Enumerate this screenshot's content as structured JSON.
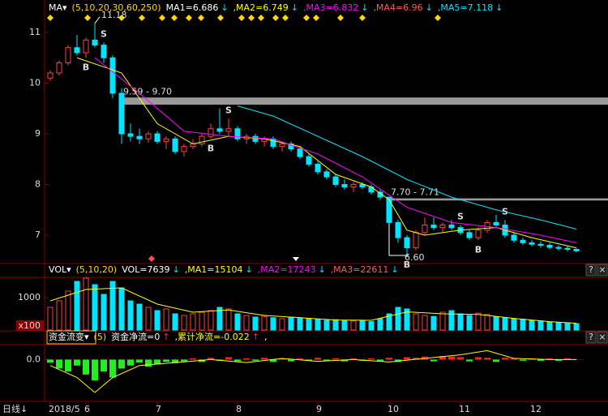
{
  "chart_data": [
    {
      "type": "candlestick",
      "title": "MA▾",
      "params": "(5,10,20,30,60,250)",
      "legend": [
        {
          "label": "MA1=6.686",
          "color": "#ffffff",
          "arrow": "↓",
          "arrow_color": "#00e5ff"
        },
        {
          "label": ",MA2=6.749",
          "color": "#ffff00",
          "arrow": "↓",
          "arrow_color": "#00e5ff"
        },
        {
          "label": ",MA3=6.832",
          "color": "#ff00ff",
          "arrow": "↓",
          "arrow_color": "#00e5ff"
        },
        {
          "label": ",MA4=6.96",
          "color": "#ff5a5a",
          "arrow": "↓",
          "arrow_color": "#00e5ff"
        },
        {
          "label": ",MA5=7.118",
          "color": "#00e5ff",
          "arrow": "↓",
          "arrow_color": "#00e5ff"
        }
      ],
      "ylim": [
        6.488,
        11.288
      ],
      "yticks": [
        7,
        8,
        9,
        10,
        11
      ],
      "candles": [
        [
          10.1,
          10.25,
          10.05,
          10.2
        ],
        [
          10.2,
          10.45,
          10.15,
          10.4
        ],
        [
          10.4,
          10.75,
          10.35,
          10.7
        ],
        [
          10.7,
          10.95,
          10.55,
          10.6
        ],
        [
          10.6,
          10.9,
          10.5,
          10.85
        ],
        [
          10.85,
          11.18,
          10.7,
          10.75
        ],
        [
          10.75,
          10.8,
          10.4,
          10.5
        ],
        [
          10.5,
          10.55,
          9.7,
          9.8
        ],
        [
          9.8,
          9.9,
          8.8,
          9.0
        ],
        [
          9.0,
          9.2,
          8.85,
          8.95
        ],
        [
          8.95,
          9.1,
          8.8,
          8.9
        ],
        [
          8.9,
          9.05,
          8.82,
          9.0
        ],
        [
          9.0,
          9.05,
          8.8,
          8.85
        ],
        [
          8.85,
          8.95,
          8.7,
          8.9
        ],
        [
          8.9,
          8.95,
          8.6,
          8.65
        ],
        [
          8.65,
          8.8,
          8.55,
          8.75
        ],
        [
          8.75,
          8.9,
          8.7,
          8.8
        ],
        [
          8.8,
          9.0,
          8.75,
          8.95
        ],
        [
          8.95,
          9.2,
          8.9,
          9.1
        ],
        [
          9.1,
          9.5,
          9.0,
          9.05
        ],
        [
          9.05,
          9.3,
          8.95,
          9.1
        ],
        [
          9.1,
          9.15,
          8.85,
          8.9
        ],
        [
          8.9,
          9.0,
          8.8,
          8.95
        ],
        [
          8.95,
          9.0,
          8.8,
          8.85
        ],
        [
          8.85,
          8.95,
          8.75,
          8.9
        ],
        [
          8.9,
          8.95,
          8.7,
          8.75
        ],
        [
          8.75,
          8.85,
          8.65,
          8.8
        ],
        [
          8.8,
          8.85,
          8.65,
          8.7
        ],
        [
          8.7,
          8.75,
          8.5,
          8.55
        ],
        [
          8.55,
          8.6,
          8.35,
          8.4
        ],
        [
          8.4,
          8.45,
          8.2,
          8.25
        ],
        [
          8.25,
          8.3,
          8.1,
          8.15
        ],
        [
          8.15,
          8.2,
          7.95,
          8.0
        ],
        [
          8.0,
          8.1,
          7.9,
          7.95
        ],
        [
          7.95,
          8.05,
          7.85,
          8.0
        ],
        [
          8.0,
          8.05,
          7.9,
          7.95
        ],
        [
          7.95,
          8.0,
          7.8,
          7.85
        ],
        [
          7.85,
          7.9,
          7.7,
          7.75
        ],
        [
          7.75,
          7.75,
          7.2,
          7.25
        ],
        [
          7.25,
          7.3,
          6.85,
          6.95
        ],
        [
          6.95,
          7.0,
          6.6,
          6.75
        ],
        [
          6.75,
          7.1,
          6.7,
          7.05
        ],
        [
          7.05,
          7.35,
          7.0,
          7.2
        ],
        [
          7.2,
          7.35,
          7.1,
          7.15
        ],
        [
          7.15,
          7.25,
          7.05,
          7.2
        ],
        [
          7.2,
          7.3,
          7.1,
          7.15
        ],
        [
          7.15,
          7.2,
          7.0,
          7.05
        ],
        [
          7.05,
          7.1,
          6.9,
          6.95
        ],
        [
          6.95,
          7.15,
          6.9,
          7.1
        ],
        [
          7.1,
          7.3,
          7.05,
          7.25
        ],
        [
          7.25,
          7.4,
          7.15,
          7.2
        ],
        [
          7.2,
          7.3,
          6.95,
          7.0
        ],
        [
          7.0,
          7.05,
          6.85,
          6.9
        ],
        [
          6.9,
          6.95,
          6.8,
          6.85
        ],
        [
          6.85,
          6.9,
          6.78,
          6.82
        ],
        [
          6.82,
          6.88,
          6.75,
          6.8
        ],
        [
          6.8,
          6.85,
          6.72,
          6.76
        ],
        [
          6.76,
          6.8,
          6.7,
          6.74
        ],
        [
          6.74,
          6.78,
          6.68,
          6.72
        ],
        [
          6.72,
          6.74,
          6.66,
          6.69
        ]
      ],
      "lines": [
        {
          "color": "#ffff00",
          "x": [
            3,
            8,
            12,
            16,
            20,
            24,
            28,
            32,
            36,
            38,
            40,
            42,
            46,
            50,
            54,
            59
          ],
          "values": [
            10.5,
            10.2,
            9.2,
            8.8,
            8.95,
            8.9,
            8.75,
            8.2,
            7.95,
            7.7,
            7.1,
            7.0,
            7.1,
            7.15,
            6.95,
            6.75
          ]
        },
        {
          "color": "#ff00ff",
          "x": [
            5,
            10,
            15,
            20,
            25,
            30,
            35,
            40,
            45,
            50,
            55,
            59
          ],
          "values": [
            10.5,
            9.8,
            9.05,
            8.95,
            8.9,
            8.6,
            8.15,
            7.55,
            7.25,
            7.15,
            7.0,
            6.85
          ]
        },
        {
          "color": "#00e5ff",
          "x": [
            21,
            25,
            30,
            35,
            40,
            45,
            50,
            55,
            59
          ],
          "values": [
            9.55,
            9.35,
            8.95,
            8.55,
            8.1,
            7.75,
            7.5,
            7.3,
            7.12
          ]
        }
      ],
      "peak": {
        "x": 5,
        "value": 11.18
      },
      "trough": {
        "x": 40,
        "value": 6.6,
        "label": "6.60"
      },
      "bands": [
        {
          "x": 8,
          "range": [
            9.59,
            9.7
          ],
          "label": "9.59 - 9.70"
        },
        {
          "x": 38,
          "range": [
            7.7,
            7.71
          ],
          "label": "7.70 - 7.71"
        }
      ],
      "signals": [
        {
          "x": 4,
          "label": "B"
        },
        {
          "x": 6,
          "label": "S"
        },
        {
          "x": 18,
          "label": "B"
        },
        {
          "x": 20,
          "label": "S"
        },
        {
          "x": 40,
          "label": "B"
        },
        {
          "x": 46,
          "label": "S"
        },
        {
          "x": 48,
          "label": "B"
        },
        {
          "x": 51,
          "label": "S"
        }
      ]
    },
    {
      "type": "volume",
      "title": "VOL▾",
      "params": "(5,10,20)",
      "legend": [
        {
          "label": "VOL=7639",
          "color": "#ffffff",
          "arrow": "↓",
          "arrow_color": "#00e5ff"
        },
        {
          "label": ",MA1=15104",
          "color": "#ffff00",
          "arrow": "↓",
          "arrow_color": "#00e5ff"
        },
        {
          "label": ",MA2=17243",
          "color": "#ff00ff",
          "arrow": "↓",
          "arrow_color": "#00e5ff"
        },
        {
          "label": ",MA3=22611",
          "color": "#ff5a5a",
          "arrow": "↓",
          "arrow_color": "#00e5ff"
        }
      ],
      "buttons": [
        "?",
        "×"
      ],
      "ylim": [
        0,
        1625
      ],
      "yticks": [
        1000
      ],
      "unit_label": "x100",
      "values": [
        700,
        900,
        1200,
        1500,
        1600,
        1400,
        1100,
        1500,
        1300,
        900,
        800,
        700,
        600,
        650,
        500,
        450,
        500,
        550,
        600,
        700,
        650,
        500,
        450,
        400,
        420,
        380,
        350,
        400,
        380,
        350,
        330,
        300,
        320,
        300,
        280,
        300,
        260,
        350,
        500,
        700,
        650,
        500,
        450,
        420,
        550,
        600,
        500,
        450,
        520,
        480,
        400,
        380,
        350,
        330,
        300,
        280,
        250,
        230,
        220,
        200
      ],
      "lines": [
        {
          "color": "#ffff00",
          "x": [
            0,
            4,
            8,
            12,
            16,
            20,
            24,
            28,
            32,
            36,
            40,
            44,
            48,
            52,
            56,
            59
          ],
          "values": [
            900,
            1250,
            1300,
            800,
            550,
            620,
            450,
            380,
            310,
            300,
            560,
            500,
            480,
            360,
            260,
            210
          ]
        }
      ]
    },
    {
      "type": "flow",
      "title": "资金流变▾",
      "params": "(5)",
      "legend": [
        {
          "label": "资金净流=0",
          "color": "#ffffff",
          "arrow": "↑",
          "arrow_color": "#ff3030"
        },
        {
          "label": ",累计净流=-0.022",
          "color": "#ffff00",
          "arrow": "↑",
          "arrow_color": "#ff3030"
        },
        {
          "label": ",",
          "color": "#ffffff"
        }
      ],
      "buttons": [
        "?",
        "×"
      ],
      "ylim": [
        -0.07,
        0.025
      ],
      "yticks": [
        {
          "value": 0,
          "label": "0.0"
        }
      ],
      "values": [
        -0.005,
        -0.015,
        -0.02,
        -0.01,
        -0.025,
        -0.035,
        -0.02,
        -0.03,
        -0.015,
        -0.01,
        -0.005,
        -0.012,
        -0.008,
        -0.004,
        -0.006,
        -0.003,
        0.002,
        -0.004,
        0.003,
        -0.002,
        0.004,
        -0.003,
        0.002,
        -0.002,
        0.003,
        -0.004,
        0.002,
        -0.003,
        0.002,
        -0.002,
        0.003,
        -0.002,
        0.002,
        -0.003,
        0.002,
        -0.002,
        0.002,
        -0.003,
        0.003,
        -0.004,
        0.004,
        0.003,
        0.005,
        -0.003,
        0.006,
        0.005,
        0.004,
        -0.003,
        0.004,
        0.003,
        -0.004,
        0.003,
        0.002,
        -0.002,
        0.002,
        -0.002,
        0.002,
        -0.002,
        0.002,
        0
      ],
      "lines": [
        {
          "color": "#ffff00",
          "x": [
            0,
            3,
            5,
            7,
            10,
            14,
            18,
            22,
            26,
            30,
            34,
            38,
            42,
            46,
            49,
            52,
            56,
            59
          ],
          "values": [
            -0.01,
            -0.03,
            -0.055,
            -0.03,
            -0.01,
            -0.005,
            0,
            -0.005,
            0.002,
            -0.003,
            0,
            -0.004,
            0.002,
            0.008,
            0.015,
            0.002,
            0,
            0
          ]
        }
      ],
      "period_label": "日线↓",
      "xticks": [
        {
          "value": 0,
          "label": "2018/5"
        },
        {
          "value": 4,
          "label": "6"
        },
        {
          "value": 12,
          "label": "7"
        },
        {
          "value": 21,
          "label": "8"
        },
        {
          "value": 30,
          "label": "9"
        },
        {
          "value": 38,
          "label": "10"
        },
        {
          "value": 46,
          "label": "11"
        },
        {
          "value": 54,
          "label": "12"
        }
      ]
    }
  ]
}
